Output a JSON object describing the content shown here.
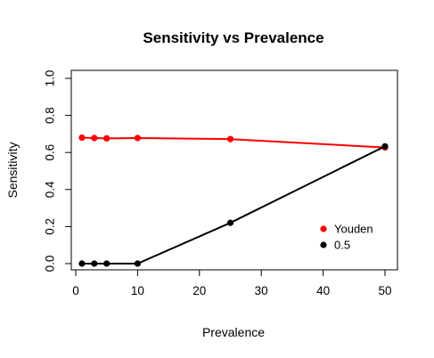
{
  "chart_data": {
    "type": "line",
    "title": "Sensitivity vs Prevalence",
    "xlabel": "Prevalence",
    "ylabel": "Sensitivity",
    "xlim": [
      0,
      50
    ],
    "ylim": [
      0,
      1
    ],
    "xticks": [
      0,
      10,
      20,
      30,
      40,
      50
    ],
    "yticks": [
      0.0,
      0.2,
      0.4,
      0.6,
      0.8,
      1.0
    ],
    "xtick_labels": [
      "0",
      "10",
      "20",
      "30",
      "40",
      "50"
    ],
    "ytick_labels": [
      "0.0",
      "0.2",
      "0.4",
      "0.6",
      "0.8",
      "1.0"
    ],
    "x": [
      1,
      3,
      5,
      10,
      25,
      50
    ],
    "series": [
      {
        "name": "Youden",
        "color": "#ff0000",
        "values": [
          0.68,
          0.678,
          0.676,
          0.678,
          0.672,
          0.627
        ]
      },
      {
        "name": "0.5",
        "color": "#000000",
        "values": [
          0.0,
          0.0,
          0.0,
          0.0,
          0.22,
          0.633
        ]
      }
    ],
    "legend_position": "bottom-right",
    "grid": false
  }
}
